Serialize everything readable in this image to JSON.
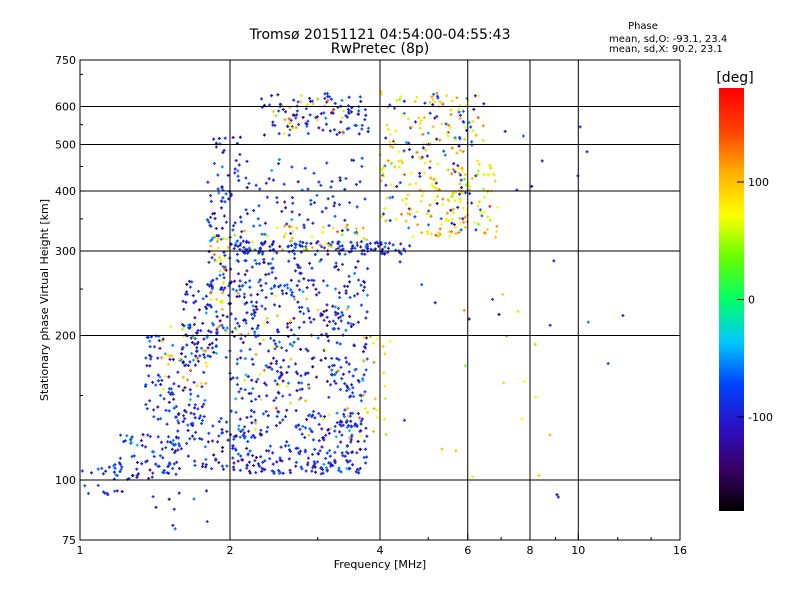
{
  "chart_data": {
    "type": "scatter",
    "title": "Tromsø 20151121 04:54:00-04:55:43",
    "subtitle": "RwPretec (8p)",
    "xlabel": "Frequency [MHz]",
    "ylabel": "Stationary phase Virtual Height [km]",
    "x_scale": "log",
    "y_scale": "log",
    "xlim": [
      1,
      16
    ],
    "ylim": [
      75,
      750
    ],
    "x_ticks": [
      1,
      2,
      4,
      6,
      8,
      10,
      16
    ],
    "x_tick_labels": [
      "1",
      "2",
      "4",
      "6",
      "8",
      "10",
      "16"
    ],
    "y_ticks": [
      75,
      100,
      200,
      300,
      400,
      500,
      600,
      750
    ],
    "y_tick_labels": [
      "75",
      "100",
      "200",
      "300",
      "400",
      "500",
      "600",
      "750"
    ],
    "grid_x": [
      2,
      4,
      6,
      8,
      10
    ],
    "grid_y": [
      100,
      200,
      300,
      400,
      500,
      600
    ],
    "phase_info": {
      "title": "Phase",
      "line_o": "mean, sd,O: -93.1, 23.4",
      "line_x": "mean, sd,X:  90.2, 23.1"
    },
    "colorbar": {
      "label": "[deg]",
      "range": [
        -180,
        180
      ],
      "ticks": [
        100,
        0,
        -100
      ],
      "tick_labels": [
        "100",
        "0",
        "-100"
      ],
      "colormap": [
        "#000000",
        "#3a0066",
        "#2a10c8",
        "#0044ff",
        "#00c8ff",
        "#00ff66",
        "#66ff00",
        "#ffff00",
        "#ffb000",
        "#ff4000",
        "#ff0000"
      ]
    },
    "series": [
      {
        "name": "O",
        "phase_mean": -93.1,
        "phase_sd": 23.4,
        "clusters": [
          {
            "x": [
              1.0,
              1.25
            ],
            "y": [
              93,
              108
            ],
            "n": 26
          },
          {
            "x": [
              1.2,
              1.6
            ],
            "y": [
              100,
              125
            ],
            "n": 70
          },
          {
            "x": [
              1.5,
              2.0
            ],
            "y": [
              105,
              135
            ],
            "n": 60
          },
          {
            "x": [
              1.35,
              1.8
            ],
            "y": [
              130,
              200
            ],
            "n": 120
          },
          {
            "x": [
              1.6,
              2.0
            ],
            "y": [
              180,
              260
            ],
            "n": 90
          },
          {
            "x": [
              1.8,
              2.05
            ],
            "y": [
              250,
              420
            ],
            "n": 70
          },
          {
            "x": [
              1.85,
              2.1
            ],
            "y": [
              420,
              520
            ],
            "n": 20
          },
          {
            "x": [
              2.0,
              3.8
            ],
            "y": [
              103,
              118
            ],
            "n": 150
          },
          {
            "x": [
              2.0,
              3.8
            ],
            "y": [
              120,
              140
            ],
            "n": 130
          },
          {
            "x": [
              2.0,
              3.8
            ],
            "y": [
              145,
              180
            ],
            "n": 130
          },
          {
            "x": [
              2.0,
              3.8
            ],
            "y": [
              185,
              235
            ],
            "n": 140
          },
          {
            "x": [
              2.0,
              3.8
            ],
            "y": [
              240,
              290
            ],
            "n": 120
          },
          {
            "x": [
              2.0,
              4.6
            ],
            "y": [
              295,
              315
            ],
            "n": 150
          },
          {
            "x": [
              2.0,
              3.8
            ],
            "y": [
              320,
              470
            ],
            "n": 90
          },
          {
            "x": [
              2.3,
              3.8
            ],
            "y": [
              520,
              640
            ],
            "n": 100
          },
          {
            "x": [
              4.0,
              6.5
            ],
            "y": [
              330,
              640
            ],
            "n": 90
          },
          {
            "x": [
              1.4,
              1.9
            ],
            "y": [
              78,
              95
            ],
            "n": 10
          },
          {
            "x": [
              4.0,
              13.0
            ],
            "y": [
              90,
              560
            ],
            "n": 24
          }
        ]
      },
      {
        "name": "X",
        "phase_mean": 90.2,
        "phase_sd": 23.1,
        "clusters": [
          {
            "x": [
              1.8,
              2.0
            ],
            "y": [
              200,
              330
            ],
            "n": 30
          },
          {
            "x": [
              1.45,
              1.8
            ],
            "y": [
              150,
              210
            ],
            "n": 25
          },
          {
            "x": [
              2.0,
              3.8
            ],
            "y": [
              300,
              340
            ],
            "n": 40
          },
          {
            "x": [
              3.6,
              4.2
            ],
            "y": [
              120,
              200
            ],
            "n": 25
          },
          {
            "x": [
              4.0,
              6.9
            ],
            "y": [
              320,
              460
            ],
            "n": 150
          },
          {
            "x": [
              4.0,
              6.5
            ],
            "y": [
              460,
              650
            ],
            "n": 80
          },
          {
            "x": [
              2.4,
              3.5
            ],
            "y": [
              520,
              640
            ],
            "n": 25
          },
          {
            "x": [
              2.0,
              3.5
            ],
            "y": [
              120,
              250
            ],
            "n": 40
          },
          {
            "x": [
              5.0,
              9.0
            ],
            "y": [
              95,
              300
            ],
            "n": 15
          }
        ]
      }
    ]
  }
}
